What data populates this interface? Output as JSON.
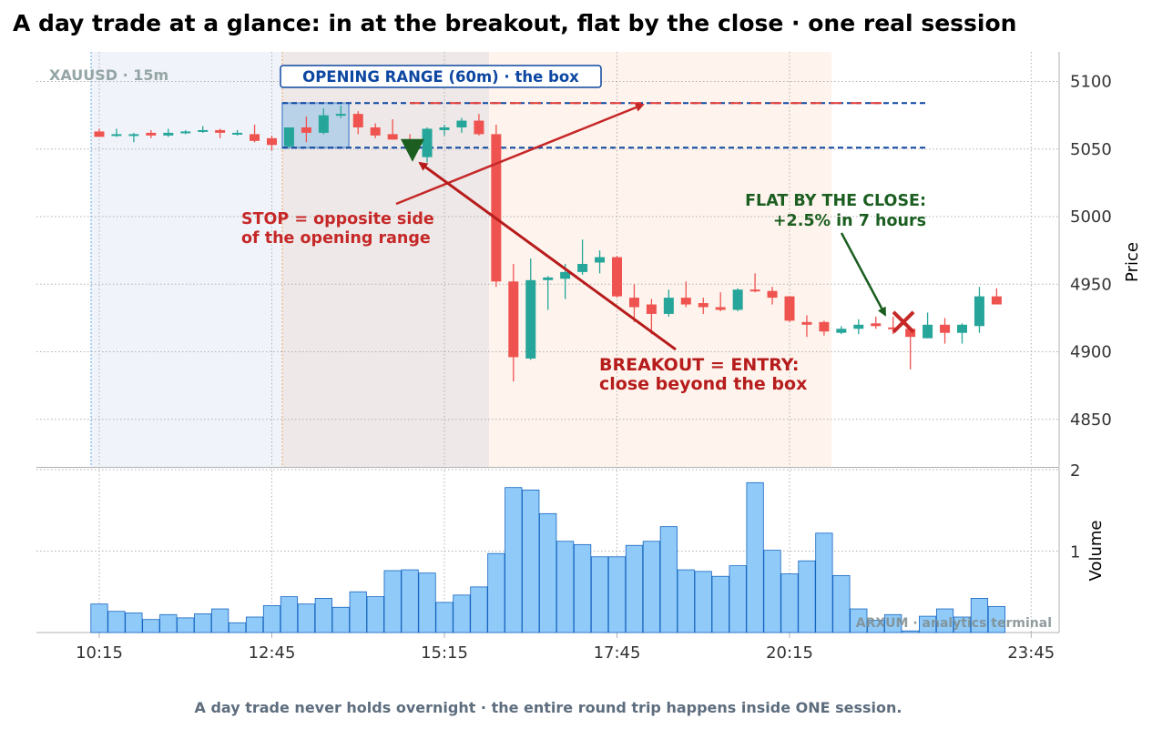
{
  "title": "A day trade at a glance: in at the breakout, flat by the close · one real session",
  "instrument_label": "XAUUSD · 15m",
  "footer": "A day trade never holds overnight · the entire round trip happens inside ONE session.",
  "watermark": "ARXUM · analytics terminal",
  "colors": {
    "up": "#26a69a",
    "down": "#ef5350",
    "volume": "#90caf9",
    "volume_edge": "#1565c0",
    "box_line": "#0d47a1",
    "stop_color": "#c62828",
    "flat_color": "#1b5e20"
  },
  "annotations": {
    "opening_range": "OPENING RANGE (60m) · the box",
    "stop_line1": "STOP = opposite side",
    "stop_line2": "of the opening range",
    "breakout_line1": "BREAKOUT = ENTRY:",
    "breakout_line2": "close beyond the box",
    "flat_line1": "FLAT BY THE CLOSE:",
    "flat_line2": "+2.5% in 7 hours"
  },
  "chart_data": {
    "type": "candlestick",
    "interval": "15m",
    "x_tick_labels": [
      "10:15",
      "12:45",
      "15:15",
      "17:45",
      "20:15",
      "23:45"
    ],
    "price_axis": {
      "label": "Price",
      "ticks": [
        4850,
        4900,
        4950,
        5000,
        5050,
        5100
      ],
      "range": [
        4832,
        5120
      ]
    },
    "volume_axis": {
      "label": "Volume",
      "ticks": [
        1,
        2
      ],
      "range": [
        0,
        2.0
      ]
    },
    "opening_range": {
      "high": 5084,
      "low": 5051,
      "minutes": 60
    },
    "entry_marker_price": 5050,
    "exit_marker_price": 4922,
    "candles": [
      {
        "t": "10:15",
        "o": 5063,
        "h": 5065,
        "l": 5060,
        "c": 5059
      },
      {
        "t": "10:30",
        "o": 5060,
        "h": 5065,
        "l": 5059,
        "c": 5061
      },
      {
        "t": "10:45",
        "o": 5061,
        "h": 5062,
        "l": 5055,
        "c": 5061
      },
      {
        "t": "11:00",
        "o": 5062,
        "h": 5064,
        "l": 5058,
        "c": 5060
      },
      {
        "t": "11:15",
        "o": 5060,
        "h": 5065,
        "l": 5059,
        "c": 5062
      },
      {
        "t": "11:30",
        "o": 5062,
        "h": 5064,
        "l": 5061,
        "c": 5063
      },
      {
        "t": "11:45",
        "o": 5063,
        "h": 5067,
        "l": 5062,
        "c": 5064
      },
      {
        "t": "12:00",
        "o": 5064,
        "h": 5065,
        "l": 5058,
        "c": 5062
      },
      {
        "t": "12:15",
        "o": 5061,
        "h": 5064,
        "l": 5060,
        "c": 5062
      },
      {
        "t": "12:30",
        "o": 5061,
        "h": 5068,
        "l": 5055,
        "c": 5056
      },
      {
        "t": "12:45",
        "o": 5058,
        "h": 5060,
        "l": 5049,
        "c": 5053
      },
      {
        "t": "13:00",
        "o": 5052,
        "h": 5065,
        "l": 5051,
        "c": 5066
      },
      {
        "t": "13:15",
        "o": 5066,
        "h": 5074,
        "l": 5055,
        "c": 5062
      },
      {
        "t": "13:30",
        "o": 5062,
        "h": 5080,
        "l": 5061,
        "c": 5075
      },
      {
        "t": "13:45",
        "o": 5075,
        "h": 5082,
        "l": 5073,
        "c": 5076
      },
      {
        "t": "14:00",
        "o": 5076,
        "h": 5078,
        "l": 5061,
        "c": 5066
      },
      {
        "t": "14:15",
        "o": 5066,
        "h": 5069,
        "l": 5058,
        "c": 5060
      },
      {
        "t": "14:30",
        "o": 5061,
        "h": 5072,
        "l": 5057,
        "c": 5057
      },
      {
        "t": "14:45",
        "o": 5056,
        "h": 5061,
        "l": 5048,
        "c": 5053
      },
      {
        "t": "15:00",
        "o": 5044,
        "h": 5066,
        "l": 5040,
        "c": 5065
      },
      {
        "t": "15:15",
        "o": 5064,
        "h": 5068,
        "l": 5060,
        "c": 5066
      },
      {
        "t": "15:30",
        "o": 5066,
        "h": 5073,
        "l": 5062,
        "c": 5071
      },
      {
        "t": "15:45",
        "o": 5071,
        "h": 5076,
        "l": 5060,
        "c": 5061
      },
      {
        "t": "16:00",
        "o": 5061,
        "h": 5068,
        "l": 4948,
        "c": 4952
      },
      {
        "t": "16:15",
        "o": 4952,
        "h": 4965,
        "l": 4878,
        "c": 4896
      },
      {
        "t": "16:30",
        "o": 4895,
        "h": 4969,
        "l": 4894,
        "c": 4953
      },
      {
        "t": "16:45",
        "o": 4953,
        "h": 4956,
        "l": 4931,
        "c": 4955
      },
      {
        "t": "17:00",
        "o": 4954,
        "h": 4965,
        "l": 4939,
        "c": 4959
      },
      {
        "t": "17:15",
        "o": 4959,
        "h": 4983,
        "l": 4957,
        "c": 4965
      },
      {
        "t": "17:30",
        "o": 4966,
        "h": 4975,
        "l": 4958,
        "c": 4970
      },
      {
        "t": "17:45",
        "o": 4970,
        "h": 4971,
        "l": 4940,
        "c": 4941
      },
      {
        "t": "18:00",
        "o": 4940,
        "h": 4950,
        "l": 4922,
        "c": 4933
      },
      {
        "t": "18:15",
        "o": 4935,
        "h": 4939,
        "l": 4913,
        "c": 4928
      },
      {
        "t": "18:30",
        "o": 4928,
        "h": 4946,
        "l": 4926,
        "c": 4940
      },
      {
        "t": "18:45",
        "o": 4940,
        "h": 4952,
        "l": 4933,
        "c": 4935
      },
      {
        "t": "19:00",
        "o": 4936,
        "h": 4940,
        "l": 4928,
        "c": 4933
      },
      {
        "t": "19:15",
        "o": 4933,
        "h": 4944,
        "l": 4930,
        "c": 4931
      },
      {
        "t": "19:30",
        "o": 4931,
        "h": 4947,
        "l": 4930,
        "c": 4946
      },
      {
        "t": "19:45",
        "o": 4946,
        "h": 4958,
        "l": 4944,
        "c": 4945
      },
      {
        "t": "20:00",
        "o": 4945,
        "h": 4948,
        "l": 4935,
        "c": 4940
      },
      {
        "t": "20:15",
        "o": 4941,
        "h": 4941,
        "l": 4922,
        "c": 4923
      },
      {
        "t": "20:30",
        "o": 4922,
        "h": 4927,
        "l": 4911,
        "c": 4920
      },
      {
        "t": "20:45",
        "o": 4922,
        "h": 4923,
        "l": 4912,
        "c": 4915
      },
      {
        "t": "21:00",
        "o": 4914,
        "h": 4919,
        "l": 4913,
        "c": 4917
      },
      {
        "t": "21:15",
        "o": 4917,
        "h": 4924,
        "l": 4913,
        "c": 4920
      },
      {
        "t": "21:30",
        "o": 4921,
        "h": 4926,
        "l": 4917,
        "c": 4919
      },
      {
        "t": "21:45",
        "o": 4918,
        "h": 4926,
        "l": 4913,
        "c": 4917
      },
      {
        "t": "22:00",
        "o": 4917,
        "h": 4917,
        "l": 4887,
        "c": 4911
      },
      {
        "t": "22:15",
        "o": 4910,
        "h": 4929,
        "l": 4910,
        "c": 4920
      },
      {
        "t": "22:30",
        "o": 4920,
        "h": 4925,
        "l": 4906,
        "c": 4914
      },
      {
        "t": "22:45",
        "o": 4914,
        "h": 4921,
        "l": 4906,
        "c": 4920
      },
      {
        "t": "23:00",
        "o": 4919,
        "h": 4948,
        "l": 4914,
        "c": 4941
      },
      {
        "t": "23:15",
        "o": 4941,
        "h": 4947,
        "l": 4935,
        "c": 4935
      }
    ],
    "volumes": [
      0.35,
      0.26,
      0.24,
      0.16,
      0.22,
      0.18,
      0.23,
      0.29,
      0.12,
      0.19,
      0.33,
      0.44,
      0.35,
      0.42,
      0.31,
      0.5,
      0.44,
      0.76,
      0.77,
      0.73,
      0.37,
      0.46,
      0.56,
      0.97,
      1.78,
      1.75,
      1.46,
      1.12,
      1.08,
      0.93,
      0.93,
      1.07,
      1.12,
      1.3,
      0.77,
      0.75,
      0.69,
      0.82,
      1.84,
      1.01,
      0.72,
      0.88,
      1.22,
      0.7,
      0.29,
      0.15,
      0.22,
      0.02,
      0.2,
      0.29,
      0.19,
      0.42,
      0.32
    ]
  }
}
